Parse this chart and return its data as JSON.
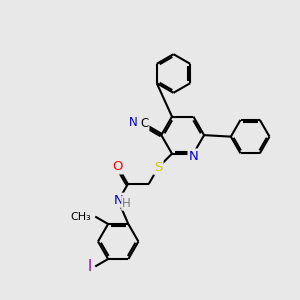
{
  "background_color": "#e8e8e8",
  "bond_color": "#000000",
  "bond_width": 1.5,
  "atom_colors": {
    "N": "#0000cc",
    "O": "#ff0000",
    "S": "#cccc00",
    "I": "#9900aa",
    "H": "#7a7a7a"
  },
  "font_size": 8.5,
  "fig_width": 3.0,
  "fig_height": 3.0,
  "dpi": 100
}
